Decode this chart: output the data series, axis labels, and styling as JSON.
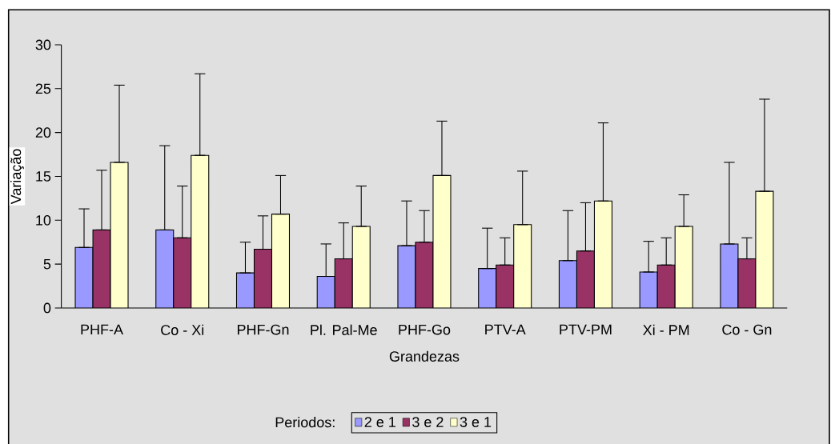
{
  "chart_data": {
    "type": "bar",
    "xlabel": "Grandezas",
    "ylabel": "Variação",
    "legend_title": "Periodos:",
    "categories": [
      "PHF-A",
      "Co - Xi",
      "PHF-Gn",
      "Pl. Pal-Me",
      "PHF-Go",
      "PTV-A",
      "PTV-PM",
      "Xi - PM",
      "Co - Gn"
    ],
    "series": [
      {
        "name": "2 e 1",
        "color": "#9999ff",
        "values": [
          6.9,
          8.9,
          4.0,
          3.6,
          7.1,
          4.5,
          5.4,
          4.1,
          7.3
        ],
        "errors": [
          [
            6.9,
            11.3
          ],
          [
            8.9,
            18.5
          ],
          [
            4.0,
            7.5
          ],
          [
            3.6,
            7.3
          ],
          [
            7.1,
            12.2
          ],
          [
            4.5,
            9.1
          ],
          [
            5.4,
            11.1
          ],
          [
            4.1,
            7.6
          ],
          [
            7.3,
            16.6
          ]
        ]
      },
      {
        "name": "3 e 2",
        "color": "#993366",
        "values": [
          8.9,
          8.0,
          6.7,
          5.6,
          7.5,
          4.9,
          6.5,
          4.9,
          5.6
        ],
        "errors": [
          [
            8.9,
            15.7
          ],
          [
            8.0,
            13.9
          ],
          [
            6.7,
            10.5
          ],
          [
            5.6,
            9.7
          ],
          [
            7.5,
            11.1
          ],
          [
            4.9,
            8.0
          ],
          [
            6.5,
            12.0
          ],
          [
            4.9,
            8.0
          ],
          [
            5.6,
            8.0
          ]
        ]
      },
      {
        "name": "3 e 1",
        "color": "#ffffcc",
        "values": [
          16.6,
          17.4,
          10.7,
          9.3,
          15.1,
          9.5,
          12.2,
          9.3,
          13.3
        ],
        "errors": [
          [
            16.6,
            25.4
          ],
          [
            17.4,
            26.7
          ],
          [
            10.7,
            15.1
          ],
          [
            9.3,
            13.9
          ],
          [
            15.1,
            21.3
          ],
          [
            9.5,
            15.6
          ],
          [
            12.2,
            21.1
          ],
          [
            9.3,
            12.9
          ],
          [
            13.3,
            23.8
          ]
        ]
      }
    ],
    "ylim": [
      0,
      30
    ],
    "yticks": [
      0,
      5,
      10,
      15,
      20,
      25,
      30
    ],
    "legend": "bottom"
  }
}
